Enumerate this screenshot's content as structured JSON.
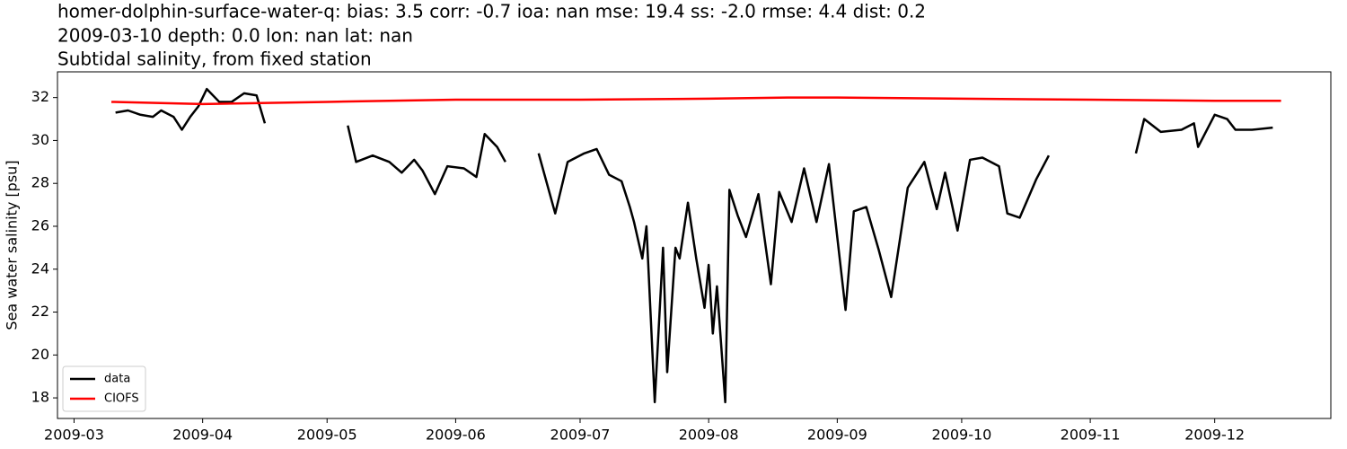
{
  "chart_data": {
    "type": "line",
    "title": [
      "homer-dolphin-surface-water-q: bias: 3.5  corr: -0.7  ioa: nan  mse: 19.4  ss: -2.0  rmse: 4.4  dist: 0.2",
      "2009-03-10 depth: 0.0 lon: nan lat: nan",
      "Subtidal salinity, from fixed station"
    ],
    "ylabel": "Sea water salinity [psu]",
    "xlim": [
      "2009-02-25",
      "2009-12-29"
    ],
    "xticks": [
      {
        "value": "2009-03-01",
        "label": "2009-03"
      },
      {
        "value": "2009-04-01",
        "label": "2009-04"
      },
      {
        "value": "2009-05-01",
        "label": "2009-05"
      },
      {
        "value": "2009-06-01",
        "label": "2009-06"
      },
      {
        "value": "2009-07-01",
        "label": "2009-07"
      },
      {
        "value": "2009-08-01",
        "label": "2009-08"
      },
      {
        "value": "2009-09-01",
        "label": "2009-09"
      },
      {
        "value": "2009-10-01",
        "label": "2009-10"
      },
      {
        "value": "2009-11-01",
        "label": "2009-11"
      },
      {
        "value": "2009-12-01",
        "label": "2009-12"
      }
    ],
    "ylim": [
      17.04,
      33.2
    ],
    "yticks": [
      18,
      20,
      22,
      24,
      26,
      28,
      30,
      32
    ],
    "legend": "lower left",
    "series": [
      {
        "name": "data",
        "color": "#000000",
        "x": [
          "2009-03-11",
          "2009-03-14",
          "2009-03-17",
          "2009-03-20",
          "2009-03-22",
          "2009-03-25",
          "2009-03-27",
          "2009-03-29",
          "2009-03-31",
          "2009-04-02",
          "2009-04-05",
          "2009-04-08",
          "2009-04-11",
          "2009-04-14",
          "2009-04-16",
          "2009-04-25",
          "2009-05-06",
          "2009-05-08",
          "2009-05-12",
          "2009-05-16",
          "2009-05-19",
          "2009-05-22",
          "2009-05-24",
          "2009-05-27",
          "2009-05-30",
          "2009-06-03",
          "2009-06-06",
          "2009-06-08",
          "2009-06-11",
          "2009-06-13",
          "2009-06-17",
          "2009-06-21",
          "2009-06-25",
          "2009-06-28",
          "2009-07-02",
          "2009-07-05",
          "2009-07-08",
          "2009-07-11",
          "2009-07-13",
          "2009-07-14",
          "2009-07-16",
          "2009-07-17",
          "2009-07-19",
          "2009-07-21",
          "2009-07-22",
          "2009-07-24",
          "2009-07-25",
          "2009-07-27",
          "2009-07-29",
          "2009-07-31",
          "2009-08-01",
          "2009-08-02",
          "2009-08-03",
          "2009-08-05",
          "2009-08-06",
          "2009-08-08",
          "2009-08-10",
          "2009-08-13",
          "2009-08-16",
          "2009-08-18",
          "2009-08-21",
          "2009-08-24",
          "2009-08-27",
          "2009-08-30",
          "2009-09-03",
          "2009-09-05",
          "2009-09-08",
          "2009-09-11",
          "2009-09-14",
          "2009-09-18",
          "2009-09-22",
          "2009-09-25",
          "2009-09-27",
          "2009-09-30",
          "2009-10-03",
          "2009-10-06",
          "2009-10-10",
          "2009-10-12",
          "2009-10-15",
          "2009-10-19",
          "2009-10-22",
          "2009-11-01",
          "2009-11-12",
          "2009-11-14",
          "2009-11-18",
          "2009-11-23",
          "2009-11-26",
          "2009-11-27",
          "2009-12-01",
          "2009-12-04",
          "2009-12-06",
          "2009-12-10",
          "2009-12-15"
        ],
        "values": [
          31.3,
          31.4,
          31.2,
          31.1,
          31.4,
          31.1,
          30.5,
          31.1,
          31.6,
          32.4,
          31.8,
          31.8,
          32.2,
          32.1,
          30.8,
          null,
          30.7,
          29.0,
          29.3,
          29.0,
          28.5,
          29.1,
          28.6,
          27.5,
          28.8,
          28.7,
          28.3,
          30.3,
          29.7,
          29.0,
          null,
          29.4,
          26.6,
          29.0,
          29.4,
          29.6,
          28.4,
          28.1,
          26.9,
          26.2,
          24.5,
          26.0,
          17.8,
          25.0,
          19.2,
          25.0,
          24.5,
          27.1,
          24.5,
          22.2,
          24.2,
          21.0,
          23.2,
          17.8,
          27.7,
          26.5,
          25.5,
          27.5,
          23.3,
          27.6,
          26.2,
          28.7,
          26.2,
          28.9,
          22.1,
          26.7,
          26.9,
          24.9,
          22.7,
          27.8,
          29.0,
          26.8,
          28.5,
          25.8,
          29.1,
          29.2,
          28.8,
          26.6,
          26.4,
          28.2,
          29.3,
          null,
          29.4,
          31.0,
          30.4,
          30.5,
          30.8,
          29.7,
          31.2,
          31.0,
          30.5,
          30.5,
          30.6
        ]
      },
      {
        "name": "CIOFS",
        "color": "#ff0000",
        "x": [
          "2009-03-10",
          "2009-04-01",
          "2009-05-01",
          "2009-06-01",
          "2009-07-01",
          "2009-08-01",
          "2009-08-20",
          "2009-09-01",
          "2009-10-01",
          "2009-11-01",
          "2009-12-01",
          "2009-12-17"
        ],
        "values": [
          31.8,
          31.7,
          31.8,
          31.9,
          31.9,
          31.95,
          32.0,
          32.0,
          31.95,
          31.9,
          31.85,
          31.85
        ]
      }
    ]
  }
}
